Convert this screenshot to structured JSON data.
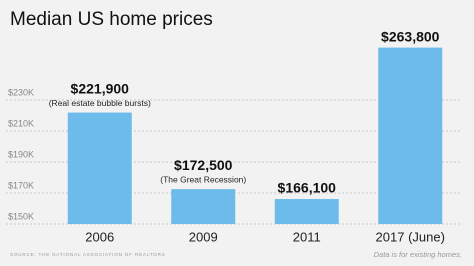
{
  "chart_data": {
    "type": "bar",
    "title": "Median US home prices",
    "categories": [
      "2006",
      "2009",
      "2011",
      "2017 (June)"
    ],
    "values": [
      221900,
      172500,
      166100,
      263800
    ],
    "value_labels": [
      "$221,900",
      "$172,500",
      "$166,100",
      "$263,800"
    ],
    "notes": [
      "(Real estate bubble bursts)",
      "(The Great Recession)",
      null,
      null
    ],
    "color": "#6cbbea",
    "ylim": [
      150000,
      270000
    ],
    "yticks": [
      {
        "value": 150000,
        "label": "$150K"
      },
      {
        "value": 170000,
        "label": "$170K"
      },
      {
        "value": 190000,
        "label": "$190K"
      },
      {
        "value": 210000,
        "label": "$210K"
      },
      {
        "value": 230000,
        "label": "$230K"
      }
    ],
    "grid": true,
    "source": "SOURCE: THE NATIONAL ASSOCIATION OF REALTORS",
    "footnote": "Data is for existing homes."
  }
}
